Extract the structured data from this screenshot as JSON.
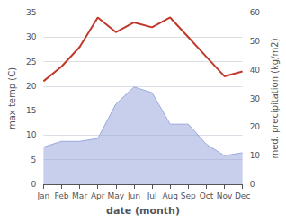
{
  "chart_data": {
    "type": "line",
    "categories": [
      "Jan",
      "Feb",
      "Mar",
      "Apr",
      "May",
      "Jun",
      "Jul",
      "Aug",
      "Sep",
      "Oct",
      "Nov",
      "Dec"
    ],
    "series": [
      {
        "type": "area",
        "axis": "y2",
        "color": "#9aa8dd",
        "values": [
          13,
          15,
          15,
          16,
          28,
          34,
          32,
          21,
          21,
          14,
          10,
          11
        ]
      },
      {
        "type": "line",
        "color": "#c0392b",
        "values": [
          21,
          24,
          28,
          34,
          31,
          33,
          32,
          34,
          30,
          26,
          22,
          23
        ]
      }
    ],
    "xlabel": "date (month)",
    "ylabel": "max temp (C)",
    "y2label": "med. precipitation (kg/m2)",
    "ylim": [
      0,
      35
    ],
    "yticks": [
      0,
      5,
      10,
      15,
      20,
      25,
      30,
      35
    ],
    "y2lim": [
      0,
      60
    ],
    "y2ticks": [
      0,
      10,
      20,
      30,
      40,
      50,
      60
    ],
    "grid": true
  }
}
